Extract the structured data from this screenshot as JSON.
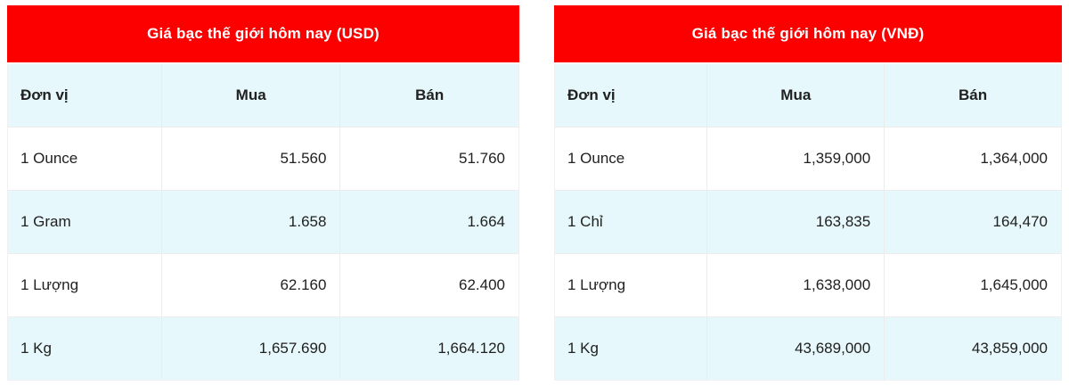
{
  "colors": {
    "banner_bg": "#fc0000",
    "banner_text": "#ffffff",
    "stripe_bg": "#e6f8fb",
    "border": "#ececec",
    "cell_text": "#212121"
  },
  "tables": [
    {
      "title": "Giá bạc thế giới hôm nay (USD)",
      "columns": [
        "Đơn vị",
        "Mua",
        "Bán"
      ],
      "rows": [
        {
          "unit": "1 Ounce",
          "buy": "51.560",
          "sell": "51.760"
        },
        {
          "unit": "1 Gram",
          "buy": "1.658",
          "sell": "1.664"
        },
        {
          "unit": "1 Lượng",
          "buy": "62.160",
          "sell": "62.400"
        },
        {
          "unit": "1 Kg",
          "buy": "1,657.690",
          "sell": "1,664.120"
        }
      ]
    },
    {
      "title": "Giá bạc thế giới hôm nay (VNĐ)",
      "columns": [
        "Đơn vị",
        "Mua",
        "Bán"
      ],
      "rows": [
        {
          "unit": "1 Ounce",
          "buy": "1,359,000",
          "sell": "1,364,000"
        },
        {
          "unit": "1 Chỉ",
          "buy": "163,835",
          "sell": "164,470"
        },
        {
          "unit": "1 Lượng",
          "buy": "1,638,000",
          "sell": "1,645,000"
        },
        {
          "unit": "1 Kg",
          "buy": "43,689,000",
          "sell": "43,859,000"
        }
      ]
    }
  ]
}
